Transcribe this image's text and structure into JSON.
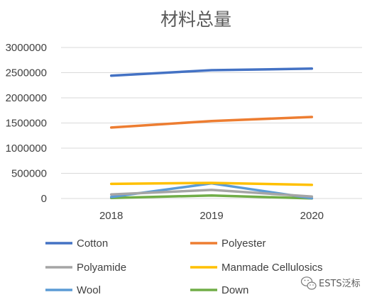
{
  "chart_data": {
    "type": "line",
    "title": "材料总量",
    "xlabel": "",
    "ylabel": "",
    "categories": [
      "2018",
      "2019",
      "2020"
    ],
    "ylim": [
      0,
      3000000
    ],
    "yticks": [
      0,
      500000,
      1000000,
      1500000,
      2000000,
      2500000,
      3000000
    ],
    "ytick_labels": [
      "0",
      "500000",
      "1000000",
      "1500000",
      "2000000",
      "2500000",
      "3000000"
    ],
    "grid": true,
    "legend_position": "bottom",
    "series": [
      {
        "name": "Cotton",
        "color": "#4472C4",
        "values": [
          2440000,
          2550000,
          2580000
        ]
      },
      {
        "name": "Polyester",
        "color": "#ED7D31",
        "values": [
          1410000,
          1540000,
          1620000
        ]
      },
      {
        "name": "Polyamide",
        "color": "#A5A5A5",
        "values": [
          80000,
          170000,
          40000
        ]
      },
      {
        "name": "Manmade Cellulosics",
        "color": "#FFC000",
        "values": [
          290000,
          310000,
          270000
        ]
      },
      {
        "name": "Wool",
        "color": "#5B9BD5",
        "values": [
          30000,
          300000,
          5000
        ]
      },
      {
        "name": "Down",
        "color": "#70AD47",
        "values": [
          10000,
          60000,
          2000
        ]
      }
    ]
  },
  "watermark": {
    "text": "ESTS泛标",
    "icon": "wechat-icon"
  }
}
